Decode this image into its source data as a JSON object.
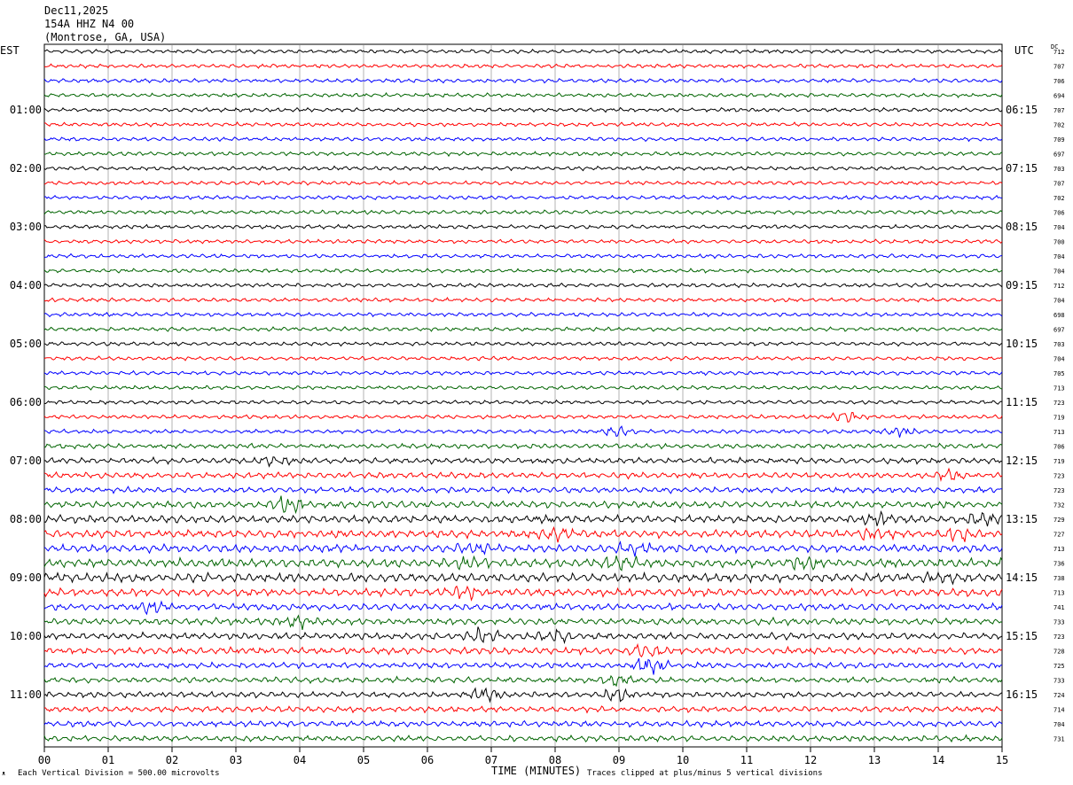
{
  "header": {
    "date": "Dec11,2025",
    "station": "154A HHZ N4 00",
    "location": "(Montrose, GA, USA)"
  },
  "labels": {
    "left_tz": "EST",
    "right_tz": "UTC",
    "dc": "DC",
    "xlabel": "TIME (MINUTES)",
    "scale_note": "Each Vertical Division =  500.00 microvolts",
    "clip_note": "Traces clipped at plus/minus 5 vertical divisions"
  },
  "colors": {
    "trace_cycle": [
      "#000000",
      "#ff0000",
      "#0000ff",
      "#006400"
    ],
    "grid": "#808080"
  },
  "chart_data": {
    "type": "line",
    "title": "",
    "xlabel": "TIME (MINUTES)",
    "x_ticks": [
      "00",
      "01",
      "02",
      "03",
      "04",
      "05",
      "06",
      "07",
      "08",
      "09",
      "10",
      "11",
      "12",
      "13",
      "14",
      "15"
    ],
    "xlim": [
      0,
      15
    ],
    "left_hour_labels": [
      "01:00",
      "02:00",
      "03:00",
      "04:00",
      "05:00",
      "06:00",
      "07:00",
      "08:00",
      "09:00",
      "10:00",
      "11:00"
    ],
    "right_hour_labels": [
      "06:15",
      "07:15",
      "08:15",
      "09:15",
      "10:15",
      "11:15",
      "12:15",
      "13:15",
      "14:15",
      "15:15",
      "16:15"
    ],
    "dc_offsets": [
      "712",
      "707",
      "706",
      "694",
      "707",
      "702",
      "709",
      "697",
      "703",
      "707",
      "702",
      "706",
      "704",
      "700",
      "704",
      "704",
      "712",
      "704",
      "698",
      "697",
      "703",
      "704",
      "705",
      "713",
      "723",
      "719",
      "713",
      "706",
      "719",
      "723",
      "723",
      "732",
      "729",
      "727",
      "713",
      "736",
      "738",
      "713",
      "741",
      "733",
      "723",
      "728",
      "725",
      "733",
      "724",
      "714",
      "704",
      "731"
    ],
    "trace_amplitude": [
      2,
      2,
      2,
      2,
      2,
      2,
      2,
      2,
      2,
      2,
      2,
      2,
      2,
      2,
      2,
      2,
      2,
      2,
      2,
      2,
      2,
      2,
      2,
      2,
      2,
      2,
      2,
      2.5,
      3,
      3,
      3,
      3.5,
      4,
      4,
      4,
      4.5,
      4.5,
      4,
      3.5,
      3.5,
      3.5,
      3.5,
      3,
      3,
      3,
      3,
      3,
      3
    ],
    "events": [
      {
        "trace": 25,
        "minute": 12.6,
        "amp": 6
      },
      {
        "trace": 26,
        "minute": 9.0,
        "amp": 5
      },
      {
        "trace": 26,
        "minute": 13.4,
        "amp": 5
      },
      {
        "trace": 28,
        "minute": 3.6,
        "amp": 5
      },
      {
        "trace": 29,
        "minute": 14.2,
        "amp": 6
      },
      {
        "trace": 31,
        "minute": 3.8,
        "amp": 8
      },
      {
        "trace": 32,
        "minute": 13.0,
        "amp": 8
      },
      {
        "trace": 32,
        "minute": 14.7,
        "amp": 7
      },
      {
        "trace": 33,
        "minute": 13.0,
        "amp": 9
      },
      {
        "trace": 33,
        "minute": 14.3,
        "amp": 7
      },
      {
        "trace": 33,
        "minute": 8.0,
        "amp": 6
      },
      {
        "trace": 34,
        "minute": 6.7,
        "amp": 7
      },
      {
        "trace": 34,
        "minute": 9.2,
        "amp": 7
      },
      {
        "trace": 35,
        "minute": 6.7,
        "amp": 7
      },
      {
        "trace": 35,
        "minute": 9.0,
        "amp": 8
      },
      {
        "trace": 35,
        "minute": 11.9,
        "amp": 8
      },
      {
        "trace": 36,
        "minute": 14.1,
        "amp": 6
      },
      {
        "trace": 37,
        "minute": 6.6,
        "amp": 6
      },
      {
        "trace": 38,
        "minute": 1.7,
        "amp": 7
      },
      {
        "trace": 39,
        "minute": 4.0,
        "amp": 6
      },
      {
        "trace": 40,
        "minute": 6.9,
        "amp": 10
      },
      {
        "trace": 40,
        "minute": 8.0,
        "amp": 6
      },
      {
        "trace": 41,
        "minute": 9.4,
        "amp": 9
      },
      {
        "trace": 42,
        "minute": 9.5,
        "amp": 10
      },
      {
        "trace": 43,
        "minute": 9.0,
        "amp": 6
      },
      {
        "trace": 44,
        "minute": 9.0,
        "amp": 7
      },
      {
        "trace": 44,
        "minute": 6.9,
        "amp": 6
      }
    ]
  }
}
